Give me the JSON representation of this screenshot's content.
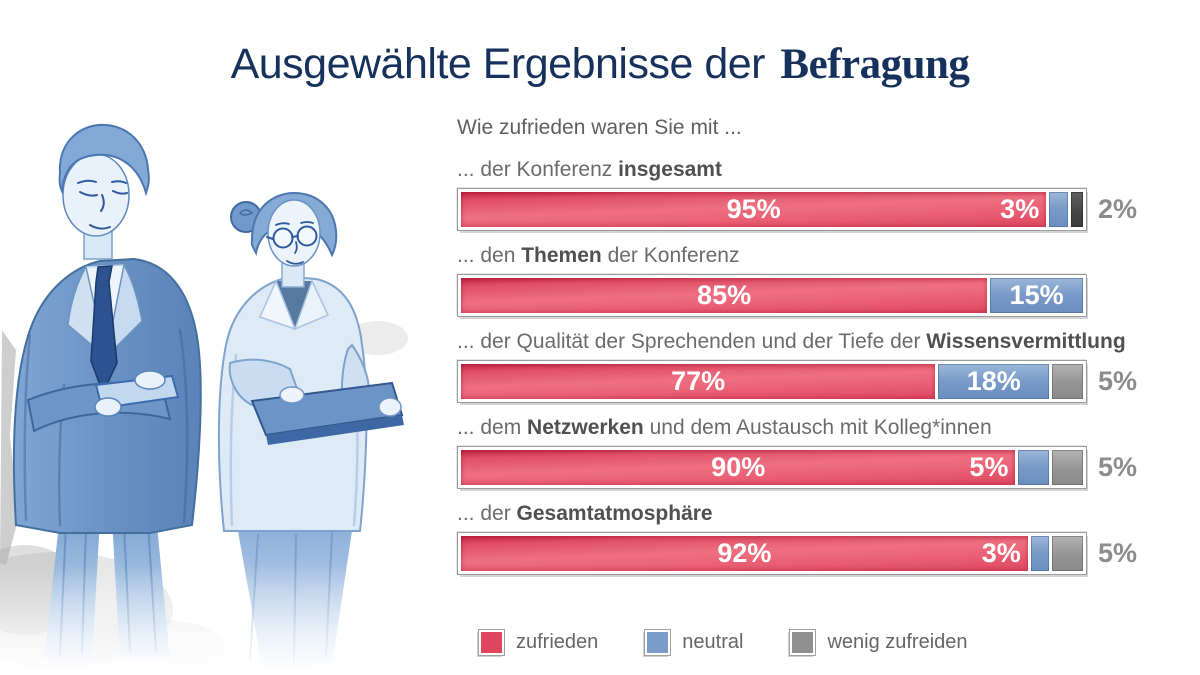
{
  "title": {
    "regular": "Ausgewählte Ergebnisse der",
    "bold": "Befragung"
  },
  "chart_data": {
    "type": "bar",
    "orientation": "horizontal-stacked",
    "question": "Wie zufrieden waren Sie mit ...",
    "unit": "%",
    "axis_range": [
      0,
      100
    ],
    "series_names": [
      "zufrieden",
      "neutral",
      "wenig zufreiden"
    ],
    "rows": [
      {
        "label_parts": [
          {
            "text": "... der Konferenz ",
            "bold": false
          },
          {
            "text": "insgesamt",
            "bold": true
          }
        ],
        "values": {
          "zufrieden": 95,
          "neutral": 3,
          "wenig_zufrieden": 2
        },
        "labels": {
          "red_center": "95%",
          "red_right": "3%",
          "blue": null,
          "outside": "2%"
        },
        "wenig_dark": true
      },
      {
        "label_parts": [
          {
            "text": "... den ",
            "bold": false
          },
          {
            "text": "Themen",
            "bold": true
          },
          {
            "text": " der Konferenz",
            "bold": false
          }
        ],
        "values": {
          "zufrieden": 85,
          "neutral": 15,
          "wenig_zufrieden": 0
        },
        "labels": {
          "red_center": "85%",
          "red_right": null,
          "blue": "15%",
          "outside": null
        },
        "wenig_dark": false
      },
      {
        "label_parts": [
          {
            "text": "... der Qualität der Sprechenden und der Tiefe der ",
            "bold": false
          },
          {
            "text": "Wissensvermittlung",
            "bold": true
          }
        ],
        "values": {
          "zufrieden": 77,
          "neutral": 18,
          "wenig_zufrieden": 5
        },
        "labels": {
          "red_center": "77%",
          "red_right": null,
          "blue": "18%",
          "outside": "5%"
        },
        "wenig_dark": false
      },
      {
        "label_parts": [
          {
            "text": "... dem ",
            "bold": false
          },
          {
            "text": "Netzwerken",
            "bold": true
          },
          {
            "text": " und dem Austausch mit Kolleg*innen",
            "bold": false
          }
        ],
        "values": {
          "zufrieden": 90,
          "neutral": 5,
          "wenig_zufrieden": 5
        },
        "labels": {
          "red_center": "90%",
          "red_right": "5%",
          "blue": null,
          "outside": "5%"
        },
        "wenig_dark": false
      },
      {
        "label_parts": [
          {
            "text": "... der ",
            "bold": false
          },
          {
            "text": "Gesamtatmosphäre",
            "bold": true
          }
        ],
        "values": {
          "zufrieden": 92,
          "neutral": 3,
          "wenig_zufrieden": 5
        },
        "labels": {
          "red_center": "92%",
          "red_right": "3%",
          "blue": null,
          "outside": "5%"
        },
        "wenig_dark": false
      }
    ]
  },
  "legend": [
    {
      "label": "zufrieden",
      "color_key": "zufrieden"
    },
    {
      "label": "neutral",
      "color_key": "neutral"
    },
    {
      "label": "wenig zufreiden",
      "color_key": "wenig"
    }
  ],
  "colors": {
    "title": "#16325c",
    "zufrieden": "#e0465e",
    "neutral": "#7b9cc9",
    "wenig": "#8f8f8f",
    "wenig_dark": "#454545",
    "outside_label": "#8c8c8c",
    "illustration_blue": "#6f99cc"
  }
}
